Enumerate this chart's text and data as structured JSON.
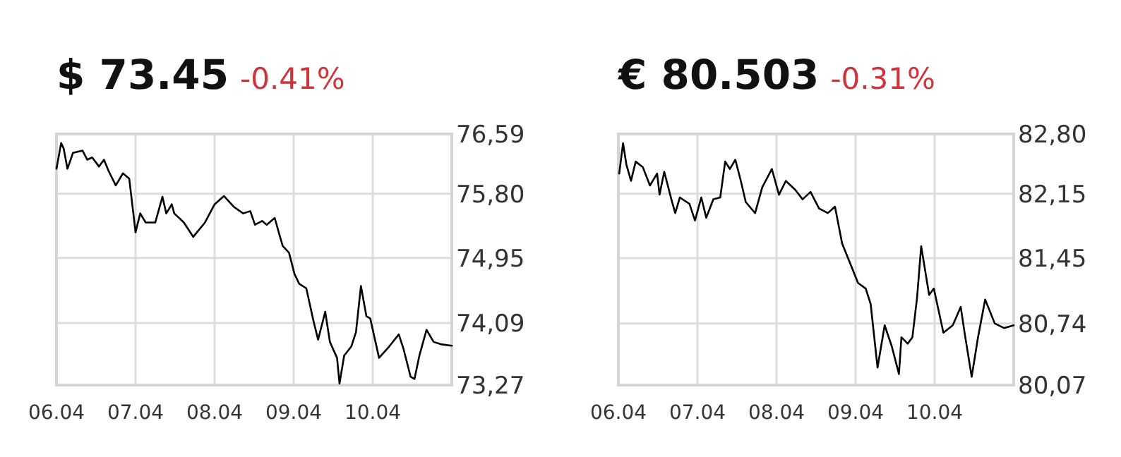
{
  "chart_data": [
    {
      "type": "line",
      "title": "$ 73.45",
      "subtitle": "-0.41%",
      "grid": true,
      "marker": "none",
      "line_style": "solid",
      "x": [
        "--04-06T00:00",
        "--04-06T01:25",
        "--04-06T02:10",
        "--04-06T03:20",
        "--04-06T05:00",
        "--04-06T07:55",
        "--04-06T09:20",
        "--04-06T10:50",
        "--04-06T12:55",
        "--04-06T14:25",
        "--04-06T15:50",
        "--04-06T18:00",
        "--04-06T20:10",
        "--04-06T22:05",
        "--04-06T23:15",
        "--04-07T00:00",
        "--04-07T01:25",
        "--04-07T03:05",
        "--04-07T06:00",
        "--04-07T08:10",
        "--04-07T09:20",
        "--04-07T11:00",
        "--04-07T11:45",
        "--04-07T14:40",
        "--04-07T17:30",
        "--04-07T21:05",
        "--04-08T00:00",
        "--04-08T02:50",
        "--04-08T05:45",
        "--04-08T08:40",
        "--04-08T10:50",
        "--04-08T12:15",
        "--04-08T14:25",
        "--04-08T15:50",
        "--04-08T18:15",
        "--04-08T19:40",
        "--04-08T20:40",
        "--04-08T22:35",
        "--04-09T00:15",
        "--04-09T01:40",
        "--04-09T03:50",
        "--04-09T06:00",
        "--04-09T07:25",
        "--04-09T09:35",
        "--04-09T11:00",
        "--04-09T13:10",
        "--04-09T13:55",
        "--04-09T15:20",
        "--04-09T17:30",
        "--04-09T18:55",
        "--04-09T20:25",
        "--04-09T22:05",
        "--04-09T23:15",
        "--04-10T01:55",
        "--04-10T05:00",
        "--04-10T07:55",
        "--04-10T09:20",
        "--04-10T11:30",
        "--04-10T12:40",
        "--04-10T14:10",
        "--04-10T16:20",
        "--04-10T18:30",
        "--04-10T20:40",
        "--04-11T00:00"
      ],
      "series": [
        {
          "color": "#000000",
          "values": [
            76.13,
            76.47,
            76.4,
            76.13,
            76.34,
            76.37,
            76.25,
            76.28,
            76.16,
            76.25,
            76.1,
            75.91,
            76.07,
            76.0,
            75.57,
            75.29,
            75.54,
            75.42,
            75.42,
            75.76,
            75.54,
            75.66,
            75.54,
            75.42,
            75.23,
            75.42,
            75.66,
            75.77,
            75.63,
            75.54,
            75.57,
            75.39,
            75.44,
            75.39,
            75.48,
            75.26,
            75.11,
            75.02,
            74.74,
            74.61,
            74.55,
            74.12,
            73.87,
            74.24,
            73.84,
            73.63,
            73.29,
            73.66,
            73.78,
            73.97,
            74.58,
            74.18,
            74.15,
            73.63,
            73.78,
            73.94,
            73.75,
            73.38,
            73.35,
            73.66,
            74.0,
            73.84,
            73.81,
            73.79
          ]
        }
      ],
      "xlim": [
        "--04-06",
        "--04-11"
      ],
      "xticks": [
        {
          "value": "--04-06",
          "label": "06.04"
        },
        {
          "value": "--04-07",
          "label": "07.04"
        },
        {
          "value": "--04-08",
          "label": "08.04"
        },
        {
          "value": "--04-09",
          "label": "09.04"
        },
        {
          "value": "--04-10",
          "label": "10.04"
        }
      ],
      "ylim": [
        73.27,
        76.59
      ],
      "yticks": [
        {
          "value": 73.27,
          "label": "73,27"
        },
        {
          "value": 74.09,
          "label": "74,09"
        },
        {
          "value": 74.95,
          "label": "74,95"
        },
        {
          "value": 75.8,
          "label": "75,80"
        },
        {
          "value": 76.59,
          "label": "76,59"
        }
      ]
    },
    {
      "type": "line",
      "title": "€ 80.503",
      "subtitle": "-0.31%",
      "grid": true,
      "marker": "none",
      "line_style": "solid",
      "x": [
        "--04-06T00:15",
        "--04-06T01:25",
        "--04-06T02:25",
        "--04-06T03:50",
        "--04-06T05:15",
        "--04-06T07:25",
        "--04-06T09:35",
        "--04-06T11:45",
        "--04-06T12:30",
        "--04-06T13:55",
        "--04-06T16:05",
        "--04-06T17:15",
        "--04-06T18:40",
        "--04-06T21:35",
        "--04-06T23:15",
        "--04-07T01:10",
        "--04-07T02:40",
        "--04-07T04:50",
        "--04-07T06:55",
        "--04-07T08:25",
        "--04-07T09:50",
        "--04-07T11:30",
        "--04-07T13:10",
        "--04-07T14:40",
        "--04-07T17:30",
        "--04-07T19:40",
        "--04-07T22:35",
        "--04-08T00:45",
        "--04-08T02:50",
        "--04-08T05:45",
        "--04-08T07:55",
        "--04-08T10:20",
        "--04-08T12:55",
        "--04-08T15:35",
        "--04-08T17:45",
        "--04-08T19:55",
        "--04-08T22:50",
        "--04-09T00:45",
        "--04-09T03:05",
        "--04-09T04:35",
        "--04-09T06:40",
        "--04-09T08:50",
        "--04-09T11:00",
        "--04-09T13:10",
        "--04-09T13:55",
        "--04-09T15:50",
        "--04-09T17:15",
        "--04-09T18:40",
        "--04-09T19:55",
        "--04-09T22:20",
        "--04-09T23:45",
        "--04-10T02:40",
        "--04-10T05:30",
        "--04-10T07:55",
        "--04-10T09:05",
        "--04-10T11:15",
        "--04-10T13:10",
        "--04-10T15:20",
        "--04-10T18:15",
        "--04-10T21:05",
        "--04-11T00:00"
      ],
      "series": [
        {
          "color": "#000000",
          "values": [
            82.37,
            82.7,
            82.47,
            82.29,
            82.5,
            82.44,
            82.24,
            82.37,
            82.14,
            82.39,
            82.09,
            81.94,
            82.11,
            82.04,
            81.86,
            82.11,
            81.89,
            82.09,
            82.11,
            82.5,
            82.42,
            82.52,
            82.29,
            82.06,
            81.94,
            82.22,
            82.42,
            82.14,
            82.29,
            82.19,
            82.09,
            82.17,
            81.99,
            81.94,
            82.01,
            81.61,
            81.35,
            81.18,
            81.12,
            80.95,
            80.26,
            80.72,
            80.49,
            80.19,
            80.59,
            80.52,
            80.59,
            81.02,
            81.58,
            81.05,
            81.12,
            80.64,
            80.72,
            80.92,
            80.64,
            80.16,
            80.59,
            81.0,
            80.74,
            80.69,
            80.72
          ]
        }
      ],
      "xlim": [
        "--04-06",
        "--04-11"
      ],
      "xticks": [
        {
          "value": "--04-06",
          "label": "06.04"
        },
        {
          "value": "--04-07",
          "label": "07.04"
        },
        {
          "value": "--04-08",
          "label": "08.04"
        },
        {
          "value": "--04-09",
          "label": "09.04"
        },
        {
          "value": "--04-10",
          "label": "10.04"
        }
      ],
      "ylim": [
        80.07,
        82.8
      ],
      "yticks": [
        {
          "value": 80.07,
          "label": "80,07"
        },
        {
          "value": 80.74,
          "label": "80,74"
        },
        {
          "value": 81.45,
          "label": "81,45"
        },
        {
          "value": 82.15,
          "label": "82,15"
        },
        {
          "value": 82.8,
          "label": "82,80"
        }
      ]
    }
  ]
}
